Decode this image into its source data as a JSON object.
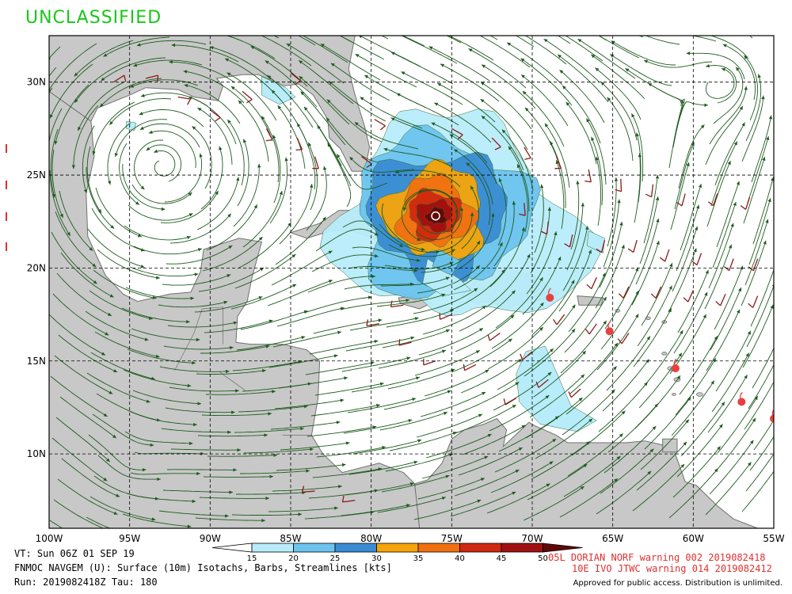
{
  "header": {
    "classification": "UNCLASSIFIED"
  },
  "map": {
    "lon_labels": [
      "100W",
      "95W",
      "90W",
      "85W",
      "80W",
      "75W",
      "70W",
      "65W",
      "60W",
      "55W"
    ],
    "lat_labels": [
      "30N",
      "25N",
      "20N",
      "15N",
      "10N"
    ],
    "lon_range": [
      -100,
      -55
    ],
    "lat_range": [
      6,
      32.5
    ],
    "colors": {
      "land": "#c8c8c8",
      "coast": "#707070",
      "grid": "#000000",
      "streamline": "#1e5a1e",
      "barb": "#8b1a1a",
      "storm": "#e84040"
    }
  },
  "storm_center": {
    "lon": -75.8,
    "lat": 22.8
  },
  "isotach_legend": {
    "ticks": [
      "15",
      "20",
      "25",
      "30",
      "35",
      "40",
      "45",
      "50"
    ],
    "colors": [
      "#b8ecfa",
      "#6cc4ee",
      "#3a8cd2",
      "#f5a40a",
      "#f07010",
      "#d02810",
      "#a01010",
      "#600808"
    ],
    "units": "kts"
  },
  "storm_track_points": [
    {
      "lon": -68.9,
      "lat": 18.4
    },
    {
      "lon": -65.2,
      "lat": 16.6
    },
    {
      "lon": -61.1,
      "lat": 14.6
    },
    {
      "lon": -57.0,
      "lat": 12.8
    },
    {
      "lon": -55.0,
      "lat": 11.9
    }
  ],
  "footer": {
    "valid_time": "VT: Sun 06Z 01 SEP 19",
    "product": "FNMOC NAVGEM (U): Surface (10m) Isotachs, Barbs, Streamlines [kts]",
    "run": "Run: 2019082418Z Tau: 180",
    "warning_1": "05L DORIAN NORF warning 002 2019082418",
    "warning_2": "10E IVO JTWC warning 014 2019082412",
    "approval": "Approved for public access. Distribution is unlimited."
  }
}
